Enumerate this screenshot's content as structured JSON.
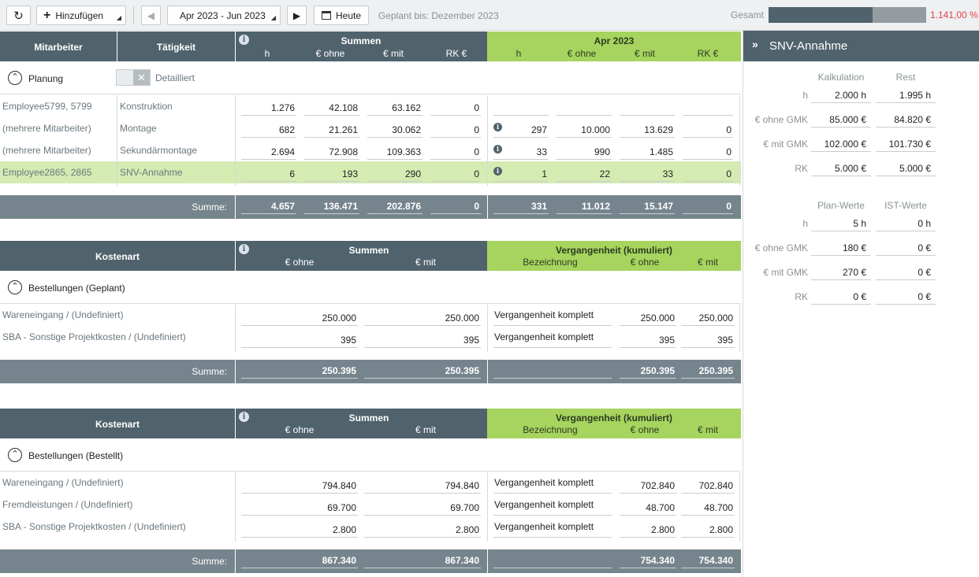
{
  "toolbar": {
    "add_label": "Hinzufügen",
    "range_label": "Apr 2023 - Jun 2023",
    "today_label": "Heute",
    "planned_until": "Geplant bis: Dezember 2023",
    "total_label": "Gesamt",
    "total_pct": "1.141,00 %",
    "progress_fraction": 0.66
  },
  "planning": {
    "headers": {
      "mitarbeiter": "Mitarbeiter",
      "taetigkeit": "Tätigkeit",
      "summen": "Summen",
      "month": "Apr 2023",
      "h": "h",
      "e_ohne": "€ ohne",
      "e_mit": "€ mit",
      "rk": "RK €"
    },
    "section_title": "Planung",
    "toggle_label": "Detailliert",
    "rows": [
      {
        "emp": "Employee5799, 5799",
        "act": "Konstruktion",
        "h": "1.276",
        "ohne": "42.108",
        "mit": "63.162",
        "rk": "0",
        "info": false,
        "mh": "",
        "mohne": "",
        "mmit": "",
        "mrk": ""
      },
      {
        "emp": "(mehrere Mitarbeiter)",
        "act": "Montage",
        "h": "682",
        "ohne": "21.261",
        "mit": "30.062",
        "rk": "0",
        "info": true,
        "mh": "297",
        "mohne": "10.000",
        "mmit": "13.629",
        "mrk": "0"
      },
      {
        "emp": "(mehrere Mitarbeiter)",
        "act": "Sekundärmontage",
        "h": "2.694",
        "ohne": "72.908",
        "mit": "109.363",
        "rk": "0",
        "info": true,
        "mh": "33",
        "mohne": "990",
        "mmit": "1.485",
        "mrk": "0"
      },
      {
        "emp": "Employee2865, 2865",
        "act": "SNV-Annahme",
        "h": "6",
        "ohne": "193",
        "mit": "290",
        "rk": "0",
        "info": true,
        "mh": "1",
        "mohne": "22",
        "mmit": "33",
        "mrk": "0"
      }
    ],
    "sum": {
      "label": "Summe:",
      "h": "4.657",
      "ohne": "136.471",
      "mit": "202.876",
      "rk": "0",
      "mh": "331",
      "mohne": "11.012",
      "mmit": "15.147",
      "mrk": "0"
    }
  },
  "geplant": {
    "headers": {
      "kostenart": "Kostenart",
      "summen": "Summen",
      "e_ohne": "€ ohne",
      "e_mit": "€ mit",
      "verg": "Vergangenheit (kumuliert)",
      "bez": "Bezeichnung"
    },
    "section_title": "Bestellungen (Geplant)",
    "rows": [
      {
        "name": "Wareneingang / (Undefiniert)",
        "ohne": "250.000",
        "mit": "250.000",
        "bez": "Vergangenheit komplett",
        "vohne": "250.000",
        "vmit": "250.000"
      },
      {
        "name": "SBA - Sonstige Projektkosten / (Undefiniert)",
        "ohne": "395",
        "mit": "395",
        "bez": "Vergangenheit komplett",
        "vohne": "395",
        "vmit": "395"
      }
    ],
    "sum": {
      "label": "Summe:",
      "ohne": "250.395",
      "mit": "250.395",
      "vohne": "250.395",
      "vmit": "250.395"
    }
  },
  "bestellt": {
    "headers": {
      "kostenart": "Kostenart",
      "summen": "Summen",
      "e_ohne": "€ ohne",
      "e_mit": "€ mit",
      "verg": "Vergangenheit (kumuliert)",
      "bez": "Bezeichnung"
    },
    "section_title": "Bestellungen (Bestellt)",
    "rows": [
      {
        "name": "Wareneingang / (Undefiniert)",
        "ohne": "794.840",
        "mit": "794.840",
        "bez": "Vergangenheit komplett",
        "vohne": "702.840",
        "vmit": "702.840"
      },
      {
        "name": "Fremdleistungen / (Undefiniert)",
        "ohne": "69.700",
        "mit": "69.700",
        "bez": "Vergangenheit komplett",
        "vohne": "48.700",
        "vmit": "48.700"
      },
      {
        "name": "SBA - Sonstige Projektkosten / (Undefiniert)",
        "ohne": "2.800",
        "mit": "2.800",
        "bez": "Vergangenheit komplett",
        "vohne": "2.800",
        "vmit": "2.800"
      }
    ],
    "sum": {
      "label": "Summe:",
      "ohne": "867.340",
      "mit": "867.340",
      "vohne": "754.340",
      "vmit": "754.340"
    }
  },
  "panel": {
    "title": "SNV-Annahme",
    "col1": "Kalkulation",
    "col2": "Rest",
    "rows1": [
      {
        "label": "h",
        "a": "2.000 h",
        "b": "1.995 h"
      },
      {
        "label": "€ ohne GMK",
        "a": "85.000 €",
        "b": "84.820 €"
      },
      {
        "label": "€ mit GMK",
        "a": "102.000 €",
        "b": "101.730 €"
      },
      {
        "label": "RK",
        "a": "5.000 €",
        "b": "5.000 €"
      }
    ],
    "col3": "Plan-Werte",
    "col4": "IST-Werte",
    "rows2": [
      {
        "label": "h",
        "a": "5 h",
        "b": "0 h"
      },
      {
        "label": "€ ohne GMK",
        "a": "180 €",
        "b": "0 €"
      },
      {
        "label": "€ mit GMK",
        "a": "270 €",
        "b": "0 €"
      },
      {
        "label": "RK",
        "a": "0 €",
        "b": "0 €"
      }
    ]
  },
  "colors": {
    "header": "#50636d",
    "accent_green": "#a6d45f",
    "selected_row": "#d4ebb2",
    "sum_row": "#76858d",
    "warning": "#e0434b"
  }
}
